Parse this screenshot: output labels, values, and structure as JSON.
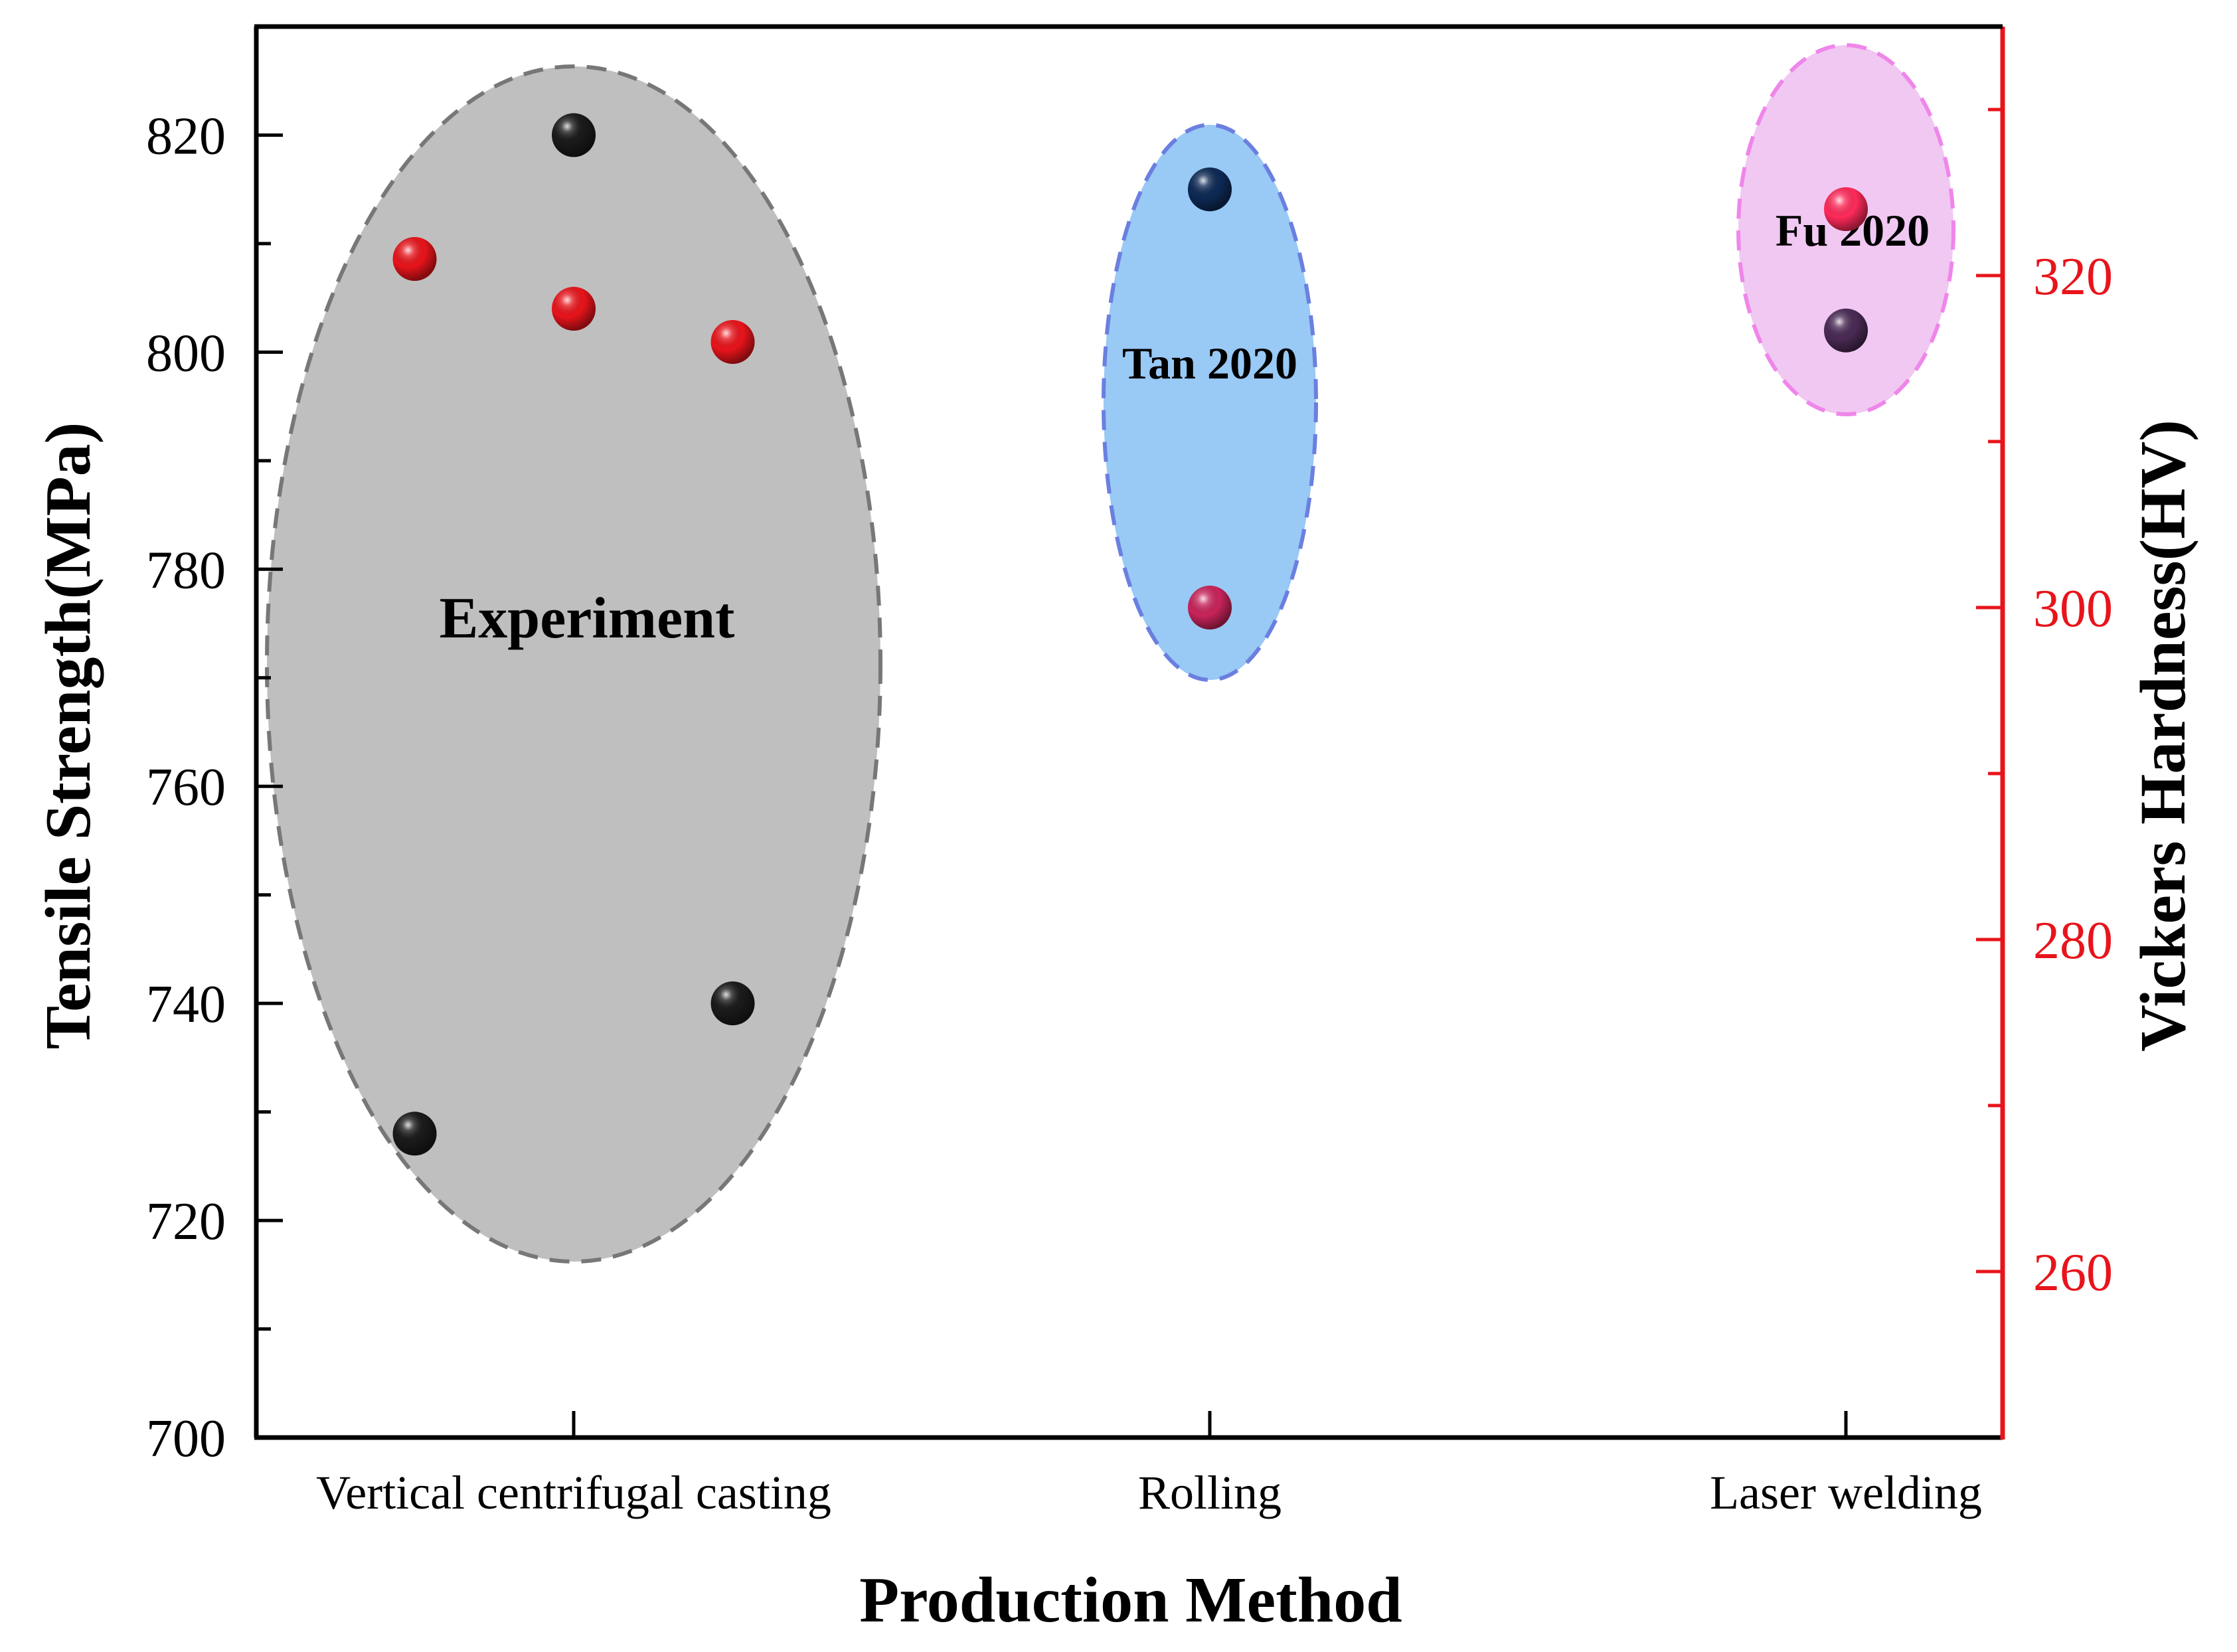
{
  "chart_data": {
    "type": "scatter",
    "xlabel": "Production Method",
    "ylabel_left": "Tensile Strength(MPa)",
    "ylabel_right": "Vickers Hardness(HV)",
    "categories": [
      "Vertical centrifugal casting",
      "Rolling",
      "Laser welding"
    ],
    "y_left": {
      "range": [
        700,
        830
      ],
      "ticks": [
        700,
        720,
        740,
        760,
        780,
        800,
        820
      ],
      "tick_labels": [
        "700",
        "720",
        "740",
        "760",
        "780",
        "800",
        "820"
      ]
    },
    "y_right": {
      "range": [
        250,
        335
      ],
      "ticks": [
        260,
        280,
        300,
        320
      ],
      "tick_labels": [
        "260",
        "280",
        "300",
        "320"
      ],
      "color": "#e8141b"
    },
    "groups": [
      {
        "label": "Experiment",
        "category": 0,
        "fill": "#bfbfbf",
        "stroke": "#777777"
      },
      {
        "label": "Tan 2020",
        "category": 1,
        "fill": "#99c9f5",
        "stroke": "#6b7fe0"
      },
      {
        "label": "Fu 2020",
        "category": 2,
        "fill": "#f0c8f2",
        "stroke": "#ef86ea"
      }
    ],
    "series": [
      {
        "name": "Tensile Strength",
        "axis": "left",
        "points": [
          {
            "category": 0,
            "offset": -0.25,
            "value": 728,
            "color": "#1a1a1a"
          },
          {
            "category": 0,
            "offset": 0.0,
            "value": 820,
            "color": "#1a1a1a"
          },
          {
            "category": 0,
            "offset": 0.25,
            "value": 740,
            "color": "#1a1a1a"
          },
          {
            "category": 1,
            "offset": 0.0,
            "value": 815,
            "color": "#0d2a55"
          },
          {
            "category": 2,
            "offset": 0.0,
            "value": 802,
            "color": "#4a2a55"
          }
        ]
      },
      {
        "name": "Vickers Hardness",
        "axis": "right",
        "points": [
          {
            "category": 0,
            "offset": -0.25,
            "value": 321,
            "color": "#e8141b"
          },
          {
            "category": 0,
            "offset": 0.0,
            "value": 318,
            "color": "#e8141b"
          },
          {
            "category": 0,
            "offset": 0.25,
            "value": 316,
            "color": "#e8141b"
          },
          {
            "category": 1,
            "offset": 0.0,
            "value": 300,
            "color": "#c8245a"
          },
          {
            "category": 2,
            "offset": 0.0,
            "value": 324,
            "color": "#ff2a5a"
          }
        ]
      }
    ]
  }
}
